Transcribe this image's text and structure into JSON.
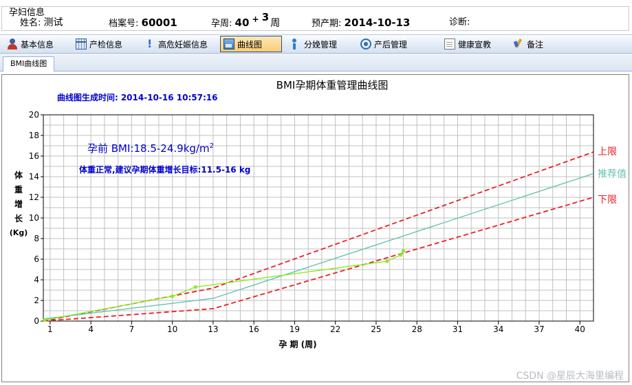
{
  "patient_info": {
    "legend": "孕妇信息",
    "name_label": "姓名:",
    "name_value": "测试",
    "file_no_label": "档案号:",
    "file_no_value": "60001",
    "gest_week_label": "孕周:",
    "gest_week_weeks": "40",
    "gest_week_plus": "+",
    "gest_week_days": "3",
    "gest_week_unit": "周",
    "due_date_label": "预产期:",
    "due_date_value": "2014-10-13",
    "diagnosis_label": "诊断:",
    "diagnosis_value": ""
  },
  "toolbar": {
    "items": [
      {
        "label": "基本信息",
        "icon": "user-icon",
        "active": false
      },
      {
        "label": "产检信息",
        "icon": "calendar-icon",
        "active": false
      },
      {
        "label": "高危妊娠信息",
        "icon": "exclamation-icon",
        "active": false
      },
      {
        "label": "曲线图",
        "icon": "chart-icon",
        "active": true
      },
      {
        "label": "分娩管理",
        "icon": "info-icon",
        "active": false
      },
      {
        "label": "产后管理",
        "icon": "phone-icon",
        "active": false
      },
      {
        "label": "健康宣教",
        "icon": "document-icon",
        "active": false
      },
      {
        "label": "备注",
        "icon": "pen-icon",
        "active": false
      }
    ]
  },
  "tabs": [
    {
      "label": "BMI曲线图"
    }
  ],
  "chart_data": {
    "type": "line",
    "title": "BMI孕期体重管理曲线图",
    "generated_time_label": "曲线图生成时间:",
    "generated_time_value": "2014-10-16 10:57:16",
    "annotation_bmi_prefix": "孕前 BMI:18.5-24.9kg/m",
    "annotation_bmi_sup": "2",
    "annotation_advice": "体重正常,建议孕期体重增长目标:11.5-16 kg",
    "xlabel": "孕 期 (周)",
    "ylabel_chars": [
      "体",
      "重",
      "增",
      "长"
    ],
    "ylabel_unit": "(Kg)",
    "xlim": [
      0.5,
      41
    ],
    "ylim": [
      0,
      20
    ],
    "x_ticks": [
      1,
      4,
      7,
      10,
      13,
      16,
      19,
      22,
      25,
      28,
      31,
      34,
      37,
      40
    ],
    "y_ticks": [
      0,
      2,
      4,
      6,
      8,
      10,
      12,
      14,
      16,
      18,
      20
    ],
    "x_grid_step": 1,
    "y_grid_step": 1,
    "grid": true,
    "legend_placement": "right",
    "colors": {
      "upper": "#ee1c24",
      "recommended": "#66c2b0",
      "lower": "#ee1c24",
      "measured": "#88ee22",
      "annotation": "#0000cc",
      "grid": "#c0c0c0"
    },
    "series": [
      {
        "name": "上限",
        "style": "dashed",
        "color": "#ee1c24",
        "x": [
          0.5,
          13,
          41
        ],
        "y": [
          0,
          3.2,
          16.4
        ]
      },
      {
        "name": "推荐值",
        "style": "solid",
        "color": "#66c2b0",
        "x": [
          0.5,
          13,
          41
        ],
        "y": [
          0.2,
          2.2,
          14.3
        ]
      },
      {
        "name": "下限",
        "style": "dashed",
        "color": "#ee1c24",
        "x": [
          0.5,
          13,
          41
        ],
        "y": [
          0,
          1.2,
          12.0
        ]
      },
      {
        "name": "",
        "style": "solid",
        "color": "#88ee22",
        "markers": true,
        "x": [
          0.6,
          10,
          11.7,
          25.8,
          26.8,
          27.0
        ],
        "y": [
          0.1,
          2.4,
          3.3,
          5.8,
          6.4,
          6.8
        ]
      }
    ]
  },
  "watermark": "CSDN @星辰大海里编程"
}
